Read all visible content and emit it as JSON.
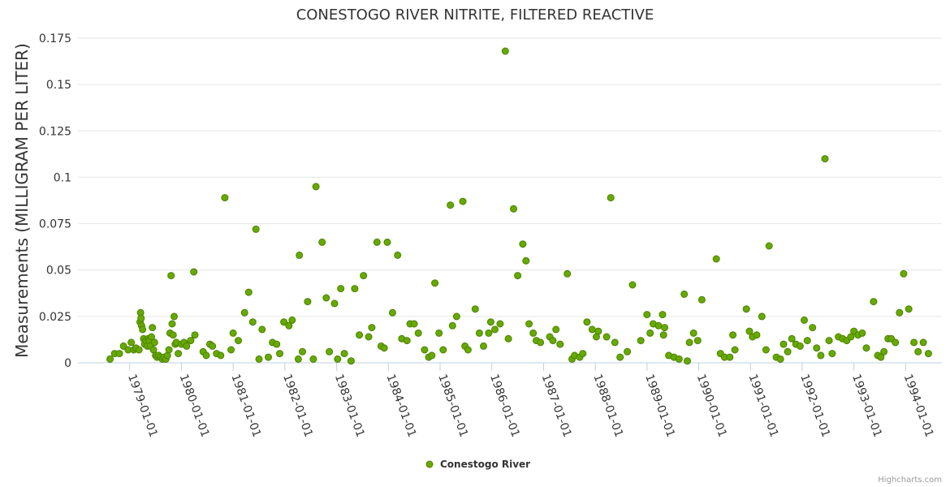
{
  "chart_data": {
    "type": "scatter",
    "title": "CONESTOGO RIVER NITRITE, FILTERED REACTIVE",
    "xlabel": "",
    "ylabel": "Measurements (MILLIGRAM PER LITER)",
    "ylim": [
      0,
      0.175
    ],
    "yticks": [
      0,
      0.025,
      0.05,
      0.075,
      0.1,
      0.125,
      0.15,
      0.175
    ],
    "ytick_labels": [
      "0",
      "0.025",
      "0.05",
      "0.075",
      "0.1",
      "0.125",
      "0.15",
      "0.175"
    ],
    "xlim": [
      1978.0,
      1994.7
    ],
    "xticks": [
      1979,
      1980,
      1981,
      1982,
      1983,
      1984,
      1985,
      1986,
      1987,
      1988,
      1989,
      1990,
      1991,
      1992,
      1993,
      1994
    ],
    "xtick_labels": [
      "1979-01-01",
      "1980-01-01",
      "1981-01-01",
      "1982-01-01",
      "1983-01-01",
      "1984-01-01",
      "1985-01-01",
      "1986-01-01",
      "1987-01-01",
      "1988-01-01",
      "1989-01-01",
      "1990-01-01",
      "1991-01-01",
      "1992-01-01",
      "1993-01-01",
      "1994-01-01"
    ],
    "grid": true,
    "legend_position": "bottom-center",
    "credits": "Highcharts.com",
    "color": "#66aa00",
    "series": [
      {
        "name": "Conestogo River",
        "points": [
          [
            1978.62,
            0.002
          ],
          [
            1978.71,
            0.005
          ],
          [
            1978.8,
            0.005
          ],
          [
            1978.88,
            0.009
          ],
          [
            1978.97,
            0.007
          ],
          [
            1979.03,
            0.011
          ],
          [
            1979.08,
            0.007
          ],
          [
            1979.12,
            0.008
          ],
          [
            1979.18,
            0.007
          ],
          [
            1979.2,
            0.022
          ],
          [
            1979.21,
            0.027
          ],
          [
            1979.22,
            0.024
          ],
          [
            1979.23,
            0.02
          ],
          [
            1979.25,
            0.018
          ],
          [
            1979.27,
            0.013
          ],
          [
            1979.29,
            0.01
          ],
          [
            1979.31,
            0.012
          ],
          [
            1979.34,
            0.009
          ],
          [
            1979.36,
            0.013
          ],
          [
            1979.38,
            0.012
          ],
          [
            1979.4,
            0.009
          ],
          [
            1979.42,
            0.014
          ],
          [
            1979.44,
            0.019
          ],
          [
            1979.46,
            0.007
          ],
          [
            1979.48,
            0.011
          ],
          [
            1979.5,
            0.004
          ],
          [
            1979.53,
            0.003
          ],
          [
            1979.56,
            0.004
          ],
          [
            1979.6,
            0.003
          ],
          [
            1979.63,
            0.002
          ],
          [
            1979.66,
            0.003
          ],
          [
            1979.7,
            0.002
          ],
          [
            1979.73,
            0.004
          ],
          [
            1979.76,
            0.007
          ],
          [
            1979.78,
            0.016
          ],
          [
            1979.8,
            0.047
          ],
          [
            1979.82,
            0.021
          ],
          [
            1979.84,
            0.015
          ],
          [
            1979.86,
            0.025
          ],
          [
            1979.88,
            0.01
          ],
          [
            1979.9,
            0.011
          ],
          [
            1979.94,
            0.005
          ],
          [
            1980.0,
            0.01
          ],
          [
            1980.05,
            0.011
          ],
          [
            1980.1,
            0.009
          ],
          [
            1980.18,
            0.012
          ],
          [
            1980.24,
            0.049
          ],
          [
            1980.26,
            0.015
          ],
          [
            1980.42,
            0.006
          ],
          [
            1980.48,
            0.004
          ],
          [
            1980.55,
            0.01
          ],
          [
            1980.6,
            0.009
          ],
          [
            1980.68,
            0.005
          ],
          [
            1980.76,
            0.004
          ],
          [
            1980.84,
            0.089
          ],
          [
            1980.96,
            0.007
          ],
          [
            1981.0,
            0.016
          ],
          [
            1981.1,
            0.012
          ],
          [
            1981.22,
            0.027
          ],
          [
            1981.3,
            0.038
          ],
          [
            1981.38,
            0.022
          ],
          [
            1981.44,
            0.072
          ],
          [
            1981.5,
            0.002
          ],
          [
            1981.56,
            0.018
          ],
          [
            1981.68,
            0.003
          ],
          [
            1981.76,
            0.011
          ],
          [
            1981.84,
            0.01
          ],
          [
            1981.9,
            0.005
          ],
          [
            1981.98,
            0.022
          ],
          [
            1982.08,
            0.02
          ],
          [
            1982.14,
            0.023
          ],
          [
            1982.26,
            0.002
          ],
          [
            1982.28,
            0.058
          ],
          [
            1982.34,
            0.006
          ],
          [
            1982.44,
            0.033
          ],
          [
            1982.55,
            0.002
          ],
          [
            1982.6,
            0.095
          ],
          [
            1982.72,
            0.065
          ],
          [
            1982.8,
            0.035
          ],
          [
            1982.86,
            0.006
          ],
          [
            1982.96,
            0.032
          ],
          [
            1983.02,
            0.002
          ],
          [
            1983.08,
            0.04
          ],
          [
            1983.15,
            0.005
          ],
          [
            1983.28,
            0.001
          ],
          [
            1983.35,
            0.04
          ],
          [
            1983.44,
            0.015
          ],
          [
            1983.52,
            0.047
          ],
          [
            1983.62,
            0.014
          ],
          [
            1983.68,
            0.019
          ],
          [
            1983.78,
            0.065
          ],
          [
            1983.86,
            0.009
          ],
          [
            1983.92,
            0.008
          ],
          [
            1983.98,
            0.065
          ],
          [
            1984.08,
            0.027
          ],
          [
            1984.18,
            0.058
          ],
          [
            1984.26,
            0.013
          ],
          [
            1984.36,
            0.012
          ],
          [
            1984.42,
            0.021
          ],
          [
            1984.5,
            0.021
          ],
          [
            1984.58,
            0.016
          ],
          [
            1984.7,
            0.007
          ],
          [
            1984.78,
            0.003
          ],
          [
            1984.84,
            0.004
          ],
          [
            1984.9,
            0.043
          ],
          [
            1984.98,
            0.016
          ],
          [
            1985.06,
            0.007
          ],
          [
            1985.2,
            0.085
          ],
          [
            1985.24,
            0.02
          ],
          [
            1985.32,
            0.025
          ],
          [
            1985.44,
            0.087
          ],
          [
            1985.48,
            0.009
          ],
          [
            1985.54,
            0.007
          ],
          [
            1985.68,
            0.029
          ],
          [
            1985.76,
            0.016
          ],
          [
            1985.84,
            0.009
          ],
          [
            1985.94,
            0.016
          ],
          [
            1985.98,
            0.022
          ],
          [
            1986.06,
            0.018
          ],
          [
            1986.16,
            0.021
          ],
          [
            1986.26,
            0.168
          ],
          [
            1986.32,
            0.013
          ],
          [
            1986.42,
            0.083
          ],
          [
            1986.5,
            0.047
          ],
          [
            1986.6,
            0.064
          ],
          [
            1986.66,
            0.055
          ],
          [
            1986.72,
            0.021
          ],
          [
            1986.8,
            0.016
          ],
          [
            1986.86,
            0.012
          ],
          [
            1986.94,
            0.011
          ],
          [
            1987.12,
            0.014
          ],
          [
            1987.18,
            0.012
          ],
          [
            1987.24,
            0.018
          ],
          [
            1987.32,
            0.01
          ],
          [
            1987.46,
            0.048
          ],
          [
            1987.55,
            0.002
          ],
          [
            1987.6,
            0.004
          ],
          [
            1987.7,
            0.003
          ],
          [
            1987.76,
            0.005
          ],
          [
            1987.84,
            0.022
          ],
          [
            1987.94,
            0.018
          ],
          [
            1988.02,
            0.014
          ],
          [
            1988.06,
            0.017
          ],
          [
            1988.22,
            0.014
          ],
          [
            1988.3,
            0.089
          ],
          [
            1988.38,
            0.011
          ],
          [
            1988.48,
            0.003
          ],
          [
            1988.62,
            0.006
          ],
          [
            1988.72,
            0.042
          ],
          [
            1988.88,
            0.012
          ],
          [
            1989.0,
            0.026
          ],
          [
            1989.06,
            0.016
          ],
          [
            1989.12,
            0.021
          ],
          [
            1989.22,
            0.02
          ],
          [
            1989.3,
            0.026
          ],
          [
            1989.32,
            0.015
          ],
          [
            1989.34,
            0.019
          ],
          [
            1989.42,
            0.004
          ],
          [
            1989.52,
            0.003
          ],
          [
            1989.62,
            0.002
          ],
          [
            1989.72,
            0.037
          ],
          [
            1989.78,
            0.001
          ],
          [
            1989.82,
            0.011
          ],
          [
            1989.9,
            0.016
          ],
          [
            1989.98,
            0.012
          ],
          [
            1990.06,
            0.034
          ],
          [
            1990.34,
            0.056
          ],
          [
            1990.42,
            0.005
          ],
          [
            1990.5,
            0.003
          ],
          [
            1990.6,
            0.003
          ],
          [
            1990.66,
            0.015
          ],
          [
            1990.7,
            0.007
          ],
          [
            1990.92,
            0.029
          ],
          [
            1990.98,
            0.017
          ],
          [
            1991.04,
            0.014
          ],
          [
            1991.12,
            0.015
          ],
          [
            1991.22,
            0.025
          ],
          [
            1991.3,
            0.007
          ],
          [
            1991.36,
            0.063
          ],
          [
            1991.5,
            0.003
          ],
          [
            1991.58,
            0.002
          ],
          [
            1991.64,
            0.01
          ],
          [
            1991.72,
            0.006
          ],
          [
            1991.8,
            0.013
          ],
          [
            1991.88,
            0.01
          ],
          [
            1991.96,
            0.009
          ],
          [
            1992.04,
            0.023
          ],
          [
            1992.1,
            0.012
          ],
          [
            1992.2,
            0.019
          ],
          [
            1992.28,
            0.008
          ],
          [
            1992.36,
            0.004
          ],
          [
            1992.44,
            0.11
          ],
          [
            1992.52,
            0.012
          ],
          [
            1992.58,
            0.005
          ],
          [
            1992.7,
            0.014
          ],
          [
            1992.78,
            0.013
          ],
          [
            1992.86,
            0.012
          ],
          [
            1992.94,
            0.014
          ],
          [
            1993.0,
            0.017
          ],
          [
            1993.08,
            0.015
          ],
          [
            1993.16,
            0.016
          ],
          [
            1993.24,
            0.008
          ],
          [
            1993.38,
            0.033
          ],
          [
            1993.46,
            0.004
          ],
          [
            1993.52,
            0.003
          ],
          [
            1993.58,
            0.006
          ],
          [
            1993.66,
            0.013
          ],
          [
            1993.72,
            0.013
          ],
          [
            1993.8,
            0.011
          ],
          [
            1993.88,
            0.027
          ],
          [
            1993.96,
            0.048
          ],
          [
            1994.06,
            0.029
          ],
          [
            1994.16,
            0.011
          ],
          [
            1994.24,
            0.006
          ],
          [
            1994.34,
            0.011
          ],
          [
            1994.44,
            0.005
          ]
        ]
      }
    ]
  }
}
